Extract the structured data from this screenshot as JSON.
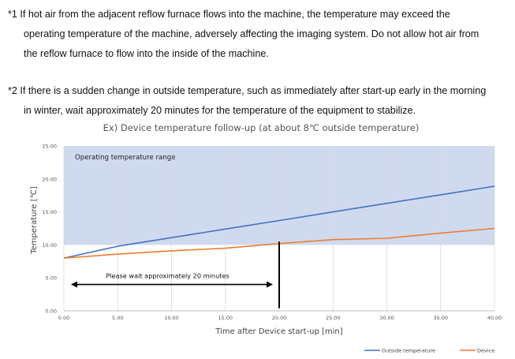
{
  "notes": [
    {
      "lines": [
        "*1 If hot air from the adjacent reflow furnace flows into the machine, the temperature may exceed the",
        "operating temperature of the machine, adversely affecting the imaging system. Do not allow hot air from",
        "the reflow furnace to flow into the inside of the machine."
      ]
    },
    {
      "lines": [
        "*2 If there is a sudden change in outside temperature, such as immediately after start-up early in the morning",
        "in winter, wait approximately 20 minutes for the temperature of the equipment to stabilize."
      ]
    }
  ],
  "chart_data": {
    "type": "line",
    "title": "Ex) Device temperature follow-up (at about 8℃ outside temperature)",
    "xlabel": "Time after Device start-up [min]",
    "ylabel": "Temperature [℃]",
    "xlim": [
      0,
      40
    ],
    "ylim": [
      0,
      25
    ],
    "x_ticks": [
      "0.00",
      "5.00",
      "10.00",
      "15.00",
      "20.00",
      "25.00",
      "30.00",
      "35.00",
      "40.00"
    ],
    "y_ticks": [
      "0.00",
      "5.00",
      "10.00",
      "15.00",
      "20.00",
      "25.00"
    ],
    "grid": "vertical",
    "legend_position": "bottom-right",
    "series": [
      {
        "name": "Outside temperature",
        "color": "#4472C4",
        "x": [
          0,
          5,
          10,
          15,
          20,
          25,
          30,
          35,
          40
        ],
        "y": [
          8.0,
          9.8,
          11.1,
          12.4,
          13.7,
          15.0,
          16.3,
          17.6,
          18.9
        ]
      },
      {
        "name": "Device",
        "color": "#ED7D31",
        "x": [
          0,
          5,
          10,
          15,
          20,
          25,
          30,
          35,
          40
        ],
        "y": [
          8.0,
          8.6,
          9.1,
          9.5,
          10.2,
          10.8,
          11.0,
          11.8,
          12.5
        ]
      }
    ],
    "band": {
      "label": "Operating temperature range",
      "from": 10,
      "to": 25,
      "color": "#CFDAEF"
    },
    "marker_x": 20,
    "annotation": {
      "text": "Please wait approximately 20 minutes",
      "from": 0,
      "to": 20,
      "y": 4
    }
  }
}
